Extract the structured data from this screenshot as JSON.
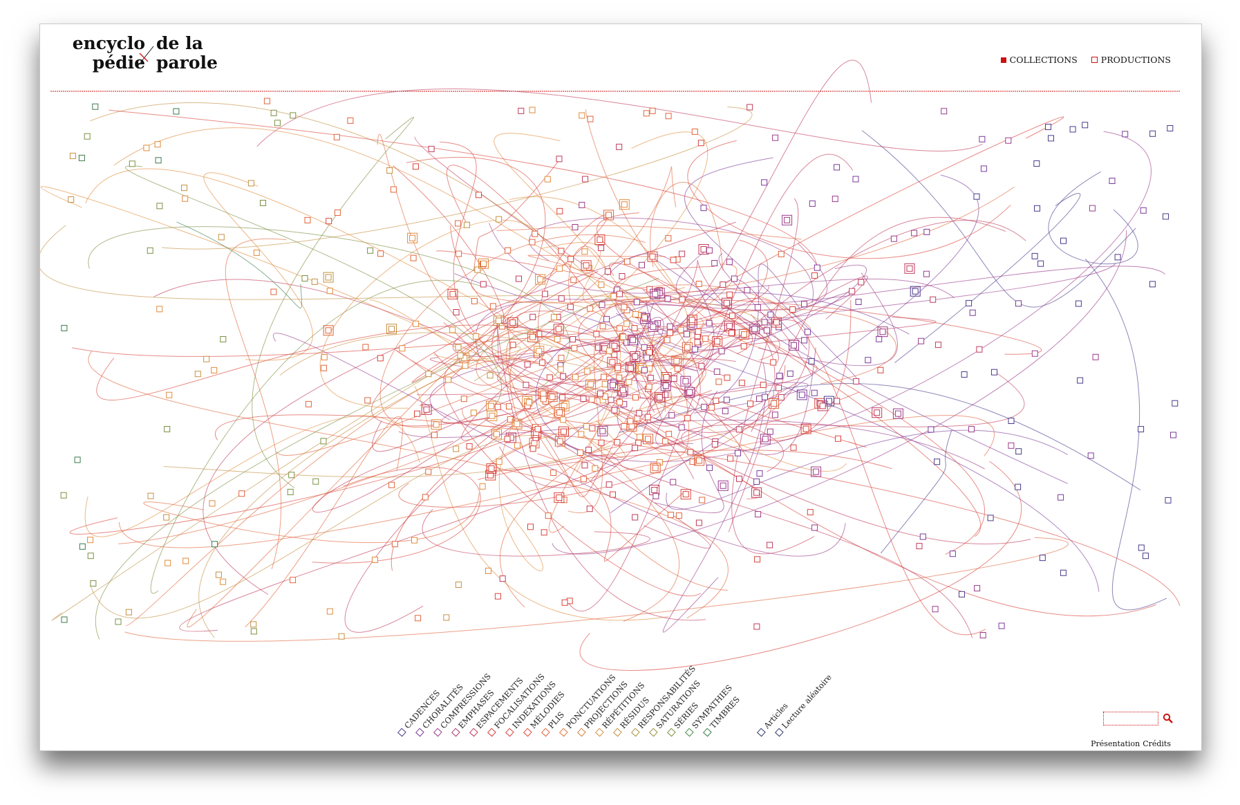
{
  "logo": {
    "line1_left": "encyclo",
    "line2_left": "pédie",
    "line1_right": "de la",
    "line2_right": "parole",
    "cross_color": "#cc1111"
  },
  "nav": {
    "collections_label": "COLLECTIONS",
    "productions_label": "PRODUCTIONS",
    "accent": "#cc1111"
  },
  "legend": {
    "items": [
      {
        "label": "CADENCES",
        "color": "#4a3a8a"
      },
      {
        "label": "CHORALITÉS",
        "color": "#7a3a9a"
      },
      {
        "label": "COMPRESSIONS",
        "color": "#9a3a8a"
      },
      {
        "label": "EMPHASES",
        "color": "#a83a6a"
      },
      {
        "label": "ESPACEMENTS",
        "color": "#c03a5a"
      },
      {
        "label": "FOCALISATIONS",
        "color": "#d03a3a"
      },
      {
        "label": "INDEXATIONS",
        "color": "#d9443a"
      },
      {
        "label": "MÉLODIES",
        "color": "#e04a3a"
      },
      {
        "label": "PLIS",
        "color": "#e0643a"
      },
      {
        "label": "PONCTUATIONS",
        "color": "#e0783a"
      },
      {
        "label": "PROJECTIONS",
        "color": "#d8843a"
      },
      {
        "label": "RÉPÉTITIONS",
        "color": "#d09040"
      },
      {
        "label": "RÉSIDUS",
        "color": "#c49040"
      },
      {
        "label": "RESPONSABILITÉS",
        "color": "#b09040"
      },
      {
        "label": "SATURATIONS",
        "color": "#9a9040"
      },
      {
        "label": "SÉRIES",
        "color": "#7a9040"
      },
      {
        "label": "SYMPATHIES",
        "color": "#4a8a4a"
      },
      {
        "label": "TIMBRES",
        "color": "#3a7a4a"
      }
    ],
    "extra": [
      {
        "label": "Articles",
        "color": "#333a6a"
      },
      {
        "label": "Lecture aléatoire",
        "color": "#333a6a"
      }
    ]
  },
  "search": {
    "placeholder": ""
  },
  "footer": {
    "presentation": "Présentation",
    "credits": "Crédits"
  },
  "colors": {
    "divider": "#cc1111",
    "palette": [
      "#4a3a8a",
      "#7a3a9a",
      "#9a3a8a",
      "#c03a5a",
      "#d9443a",
      "#e0643a",
      "#e08a3a",
      "#c49040",
      "#7a9040",
      "#3a7a4a"
    ]
  }
}
